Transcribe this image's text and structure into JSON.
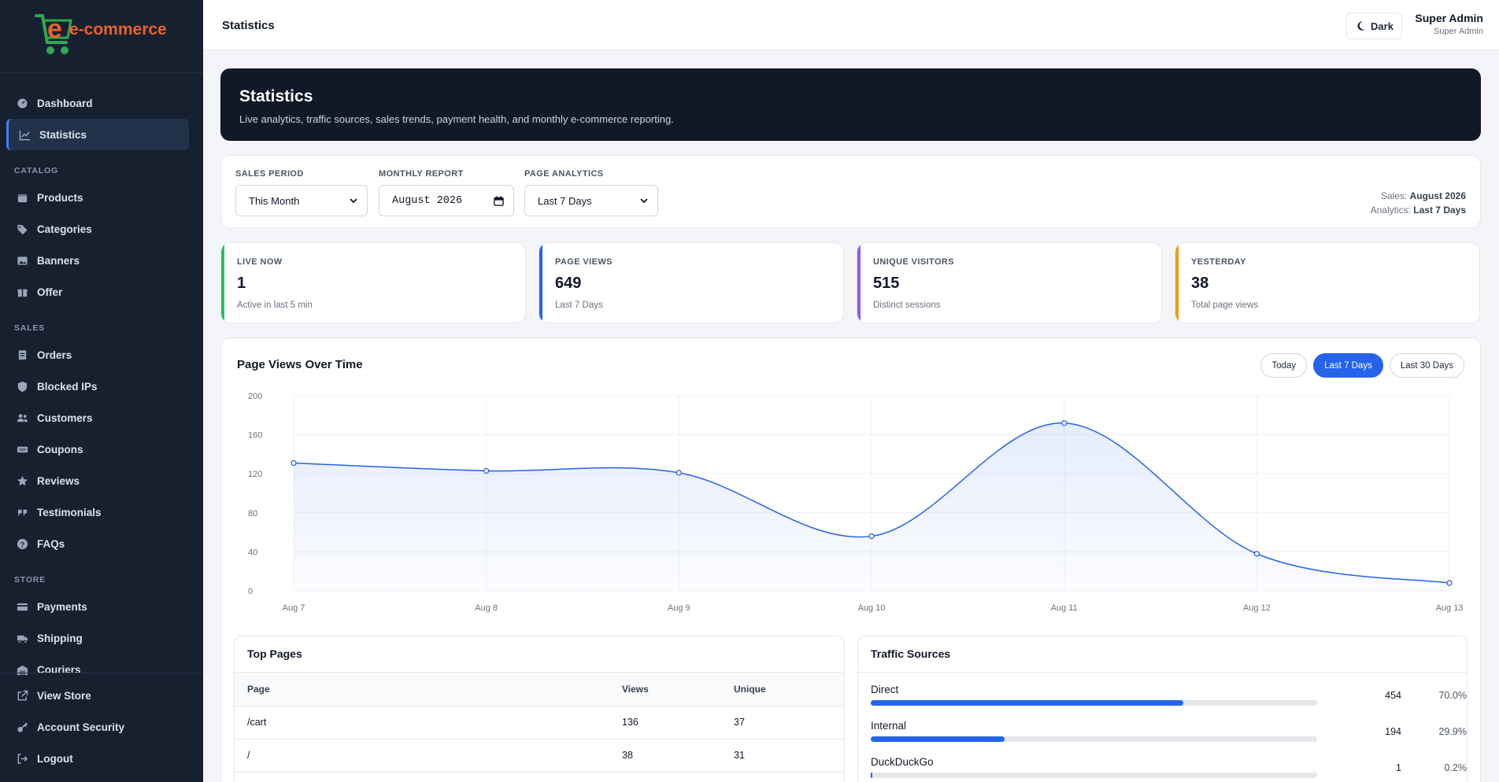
{
  "brand": {
    "logo_text": "e-commerce"
  },
  "sidebar": {
    "top": [
      {
        "label": "Dashboard",
        "icon": "dashboard-icon"
      },
      {
        "label": "Statistics",
        "icon": "chart-line-icon",
        "active": true
      }
    ],
    "sections": [
      {
        "title": "CATALOG",
        "items": [
          {
            "label": "Products",
            "icon": "box-icon"
          },
          {
            "label": "Categories",
            "icon": "tags-icon"
          },
          {
            "label": "Banners",
            "icon": "image-icon"
          },
          {
            "label": "Offer",
            "icon": "gift-icon"
          }
        ]
      },
      {
        "title": "SALES",
        "items": [
          {
            "label": "Orders",
            "icon": "receipt-icon"
          },
          {
            "label": "Blocked IPs",
            "icon": "shield-icon"
          },
          {
            "label": "Customers",
            "icon": "users-icon"
          },
          {
            "label": "Coupons",
            "icon": "ticket-icon"
          },
          {
            "label": "Reviews",
            "icon": "star-icon"
          },
          {
            "label": "Testimonials",
            "icon": "quote-icon"
          },
          {
            "label": "FAQs",
            "icon": "question-icon"
          }
        ]
      },
      {
        "title": "STORE",
        "items": [
          {
            "label": "Payments",
            "icon": "credit-card-icon"
          },
          {
            "label": "Shipping",
            "icon": "truck-icon"
          },
          {
            "label": "Couriers",
            "icon": "warehouse-icon"
          }
        ]
      }
    ],
    "bottom": [
      {
        "label": "View Store",
        "icon": "external-link-icon"
      },
      {
        "label": "Account Security",
        "icon": "key-icon"
      },
      {
        "label": "Logout",
        "icon": "logout-icon"
      }
    ]
  },
  "topbar": {
    "title": "Statistics",
    "theme_label": "Dark",
    "user_name": "Super Admin",
    "user_role": "Super Admin"
  },
  "hero": {
    "title": "Statistics",
    "subtitle": "Live analytics, traffic sources, sales trends, payment health, and monthly e-commerce reporting."
  },
  "filters": {
    "sales_period": {
      "label": "SALES PERIOD",
      "value": "This Month"
    },
    "monthly_report": {
      "label": "MONTHLY REPORT",
      "value": "August 2026"
    },
    "page_analytics": {
      "label": "PAGE ANALYTICS",
      "value": "Last 7 Days"
    },
    "summary_sales_label": "Sales:",
    "summary_sales_value": "August 2026",
    "summary_analytics_label": "Analytics:",
    "summary_analytics_value": "Last 7 Days"
  },
  "stats": [
    {
      "label": "LIVE NOW",
      "value": "1",
      "sub": "Active in last 5 min",
      "color": "#22c55e"
    },
    {
      "label": "PAGE VIEWS",
      "value": "649",
      "sub": "Last 7 Days",
      "color": "#2563eb"
    },
    {
      "label": "UNIQUE VISITORS",
      "value": "515",
      "sub": "Distinct sessions",
      "color": "#8b5cf6"
    },
    {
      "label": "YESTERDAY",
      "value": "38",
      "sub": "Total page views",
      "color": "#f59e0b"
    }
  ],
  "chart_panel": {
    "title": "Page Views Over Time",
    "ranges": [
      {
        "label": "Today",
        "active": false
      },
      {
        "label": "Last 7 Days",
        "active": true
      },
      {
        "label": "Last 30 Days",
        "active": false
      }
    ]
  },
  "chart_data": {
    "type": "area",
    "title": "Page Views Over Time",
    "x": [
      "Aug 7",
      "Aug 8",
      "Aug 9",
      "Aug 10",
      "Aug 11",
      "Aug 12",
      "Aug 13"
    ],
    "series": [
      {
        "values": [
          131,
          123,
          121,
          56,
          172,
          38,
          8
        ]
      }
    ],
    "ylim": [
      0,
      200
    ],
    "yticks": [
      0,
      40,
      80,
      120,
      160,
      200
    ],
    "grid": true,
    "colors": {
      "line": "#2563eb",
      "fill": "#2563eb"
    }
  },
  "top_pages": {
    "title": "Top Pages",
    "columns": [
      "Page",
      "Views",
      "Unique"
    ],
    "rows": [
      [
        "/cart",
        "136",
        "37"
      ],
      [
        "/",
        "38",
        "31"
      ]
    ]
  },
  "traffic_sources": {
    "title": "Traffic Sources",
    "rows": [
      {
        "name": "Direct",
        "count": "454",
        "pct": "70.0%",
        "fraction": 0.7
      },
      {
        "name": "Internal",
        "count": "194",
        "pct": "29.9%",
        "fraction": 0.299
      },
      {
        "name": "DuckDuckGo",
        "count": "1",
        "pct": "0.2%",
        "fraction": 0.002
      }
    ]
  }
}
